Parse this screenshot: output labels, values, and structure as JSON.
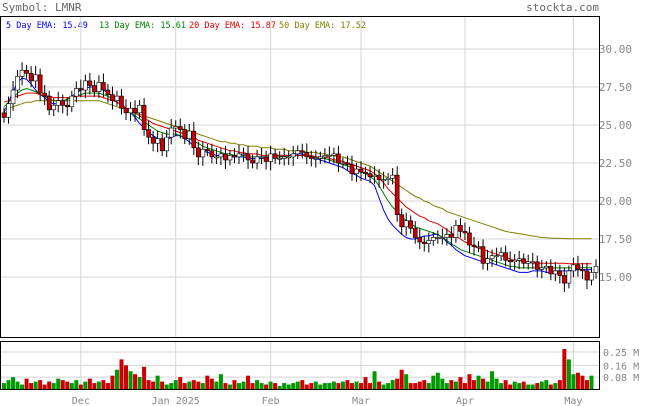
{
  "header": {
    "symbol_label": "Symbol: LMNR",
    "site": "stockta.com"
  },
  "ema_legend": [
    {
      "label": "5 Day EMA:",
      "value": "15.49",
      "color": "#0000ff"
    },
    {
      "label": "13 Day EMA:",
      "value": "15.61",
      "color": "#008000"
    },
    {
      "label": "20 Day EMA:",
      "value": "15.87",
      "color": "#e00000"
    },
    {
      "label": "50 Day EMA:",
      "value": "17.52",
      "color": "#808000"
    }
  ],
  "chart_data": {
    "type": "candlestick",
    "price_axis": {
      "ticks": [
        15.0,
        17.5,
        20.0,
        22.5,
        25.0,
        27.5,
        30.0
      ],
      "tick_labels": [
        "15.00",
        "17.50",
        "20.00",
        "22.50",
        "25.00",
        "27.50",
        "30.00"
      ],
      "ylim": [
        12.0,
        31.0
      ]
    },
    "volume_axis": {
      "ticks": [
        0.08,
        0.16,
        0.25
      ],
      "tick_labels": [
        "0.08 M",
        "0.16 M",
        "0.25 M"
      ],
      "ylim": [
        0,
        0.27
      ]
    },
    "x_labels": [
      {
        "label": "Dec",
        "index": 17
      },
      {
        "label": "Jan 2025",
        "index": 38
      },
      {
        "label": "Feb",
        "index": 59
      },
      {
        "label": "Mar",
        "index": 79
      },
      {
        "label": "Apr",
        "index": 102
      },
      {
        "label": "May",
        "index": 126
      }
    ],
    "closes": [
      25.5,
      26.4,
      27.3,
      28.2,
      28.6,
      28.4,
      27.9,
      28.3,
      27.1,
      26.9,
      26.0,
      26.3,
      26.6,
      26.3,
      26.2,
      26.9,
      27.4,
      27.3,
      27.9,
      27.6,
      27.2,
      27.8,
      27.3,
      27.0,
      26.6,
      26.9,
      26.1,
      25.8,
      26.1,
      25.8,
      26.3,
      24.7,
      24.2,
      23.8,
      24.1,
      23.3,
      24.2,
      24.8,
      24.9,
      24.7,
      24.1,
      24.6,
      23.5,
      22.9,
      23.4,
      23.3,
      22.9,
      22.9,
      23.1,
      22.7,
      23.0,
      22.9,
      23.1,
      23.1,
      22.7,
      22.5,
      22.9,
      22.9,
      22.6,
      23.1,
      22.8,
      22.8,
      22.9,
      22.9,
      23.1,
      23.3,
      23.2,
      22.9,
      22.8,
      22.8,
      22.9,
      23.0,
      23.0,
      23.1,
      22.5,
      22.5,
      22.4,
      21.8,
      22.1,
      21.9,
      21.8,
      21.6,
      21.7,
      21.4,
      21.4,
      21.5,
      21.7,
      19.1,
      18.3,
      18.7,
      18.2,
      17.6,
      17.3,
      17.2,
      17.4,
      17.6,
      17.6,
      17.6,
      17.8,
      17.6,
      18.4,
      18.0,
      17.9,
      17.1,
      17.0,
      17.0,
      15.9,
      16.2,
      16.4,
      16.4,
      16.6,
      16.1,
      16.0,
      16.1,
      16.2,
      15.9,
      16.0,
      16.0,
      15.5,
      15.6,
      15.7,
      15.2,
      15.4,
      15.1,
      14.6,
      15.4,
      15.8,
      15.5,
      15.4,
      14.8,
      15.3,
      15.7
    ],
    "ema": [
      {
        "name": "5 Day EMA",
        "values": [
          25.8,
          26.5,
          27.2,
          27.8,
          28.1,
          28.0,
          27.7,
          27.3,
          27.0,
          26.8,
          26.5,
          26.4,
          26.4,
          26.5,
          26.7,
          26.9,
          27.1,
          27.3,
          27.4,
          27.5,
          27.5,
          27.5,
          27.3,
          27.1,
          26.9,
          26.7,
          26.4,
          26.1,
          25.8,
          25.5,
          25.1,
          24.8,
          24.5,
          24.3,
          24.1,
          24.0,
          24.0,
          24.2,
          24.3,
          24.3,
          24.1,
          23.9,
          23.6,
          23.4,
          23.3,
          23.2,
          23.1,
          23.0,
          23.0,
          23.0,
          22.9,
          22.9,
          22.9,
          22.9,
          22.8,
          22.8,
          22.8,
          22.8,
          22.8,
          22.9,
          22.9,
          22.9,
          23.0,
          23.0,
          23.1,
          23.1,
          23.1,
          23.0,
          22.9,
          22.8,
          22.7,
          22.6,
          22.5,
          22.4,
          22.3,
          22.2,
          22.0,
          21.8,
          21.7,
          21.5,
          21.4,
          21.3,
          21.0,
          20.2,
          19.4,
          18.8,
          18.4,
          18.1,
          17.8,
          17.6,
          17.5,
          17.5,
          17.6,
          17.7,
          17.7,
          17.8,
          17.8,
          17.6,
          17.3,
          17.1,
          16.8,
          16.6,
          16.4,
          16.3,
          16.2,
          16.1,
          16.0,
          16.0,
          15.9,
          15.8,
          15.7,
          15.6,
          15.5,
          15.4,
          15.3,
          15.3,
          15.3,
          15.4,
          15.4,
          15.4,
          15.3,
          15.3,
          15.4,
          15.4,
          15.4,
          15.4,
          15.45,
          15.49,
          15.49,
          15.49,
          15.49
        ]
      },
      {
        "name": "13 Day EMA",
        "values": [
          26.2,
          26.5,
          26.8,
          27.1,
          27.3,
          27.4,
          27.3,
          27.2,
          27.0,
          26.9,
          26.7,
          26.6,
          26.6,
          26.6,
          26.7,
          26.8,
          26.9,
          27.0,
          27.1,
          27.1,
          27.1,
          27.1,
          27.0,
          26.9,
          26.7,
          26.5,
          26.3,
          26.1,
          25.9,
          25.6,
          25.4,
          25.2,
          25.0,
          24.8,
          24.6,
          24.5,
          24.4,
          24.4,
          24.4,
          24.3,
          24.2,
          24.1,
          23.9,
          23.8,
          23.6,
          23.5,
          23.4,
          23.3,
          23.2,
          23.1,
          23.1,
          23.0,
          23.0,
          23.0,
          22.9,
          22.9,
          22.9,
          22.9,
          22.9,
          22.9,
          22.9,
          22.9,
          22.9,
          23.0,
          23.0,
          23.0,
          23.0,
          23.0,
          22.9,
          22.9,
          22.8,
          22.8,
          22.7,
          22.6,
          22.5,
          22.4,
          22.3,
          22.2,
          22.0,
          21.9,
          21.8,
          21.6,
          21.4,
          21.0,
          20.5,
          20.0,
          19.6,
          19.3,
          19.0,
          18.7,
          18.5,
          18.3,
          18.2,
          18.1,
          18.0,
          17.9,
          17.8,
          17.6,
          17.4,
          17.2,
          17.0,
          16.8,
          16.7,
          16.6,
          16.5,
          16.4,
          16.3,
          16.2,
          16.1,
          16.0,
          15.9,
          15.8,
          15.7,
          15.7,
          15.6,
          15.6,
          15.6,
          15.6,
          15.6,
          15.6,
          15.6,
          15.6,
          15.6,
          15.6,
          15.6,
          15.6,
          15.61,
          15.61,
          15.61,
          15.61,
          15.61
        ]
      },
      {
        "name": "20 Day EMA",
        "values": [
          26.5,
          26.6,
          26.8,
          26.9,
          27.0,
          27.1,
          27.1,
          27.1,
          27.0,
          26.9,
          26.9,
          26.8,
          26.8,
          26.8,
          26.8,
          26.8,
          26.9,
          26.9,
          26.9,
          26.9,
          26.9,
          26.9,
          26.8,
          26.7,
          26.6,
          26.5,
          26.3,
          26.1,
          25.9,
          25.8,
          25.6,
          25.4,
          25.3,
          25.1,
          25.0,
          24.9,
          24.8,
          24.7,
          24.6,
          24.5,
          24.4,
          24.3,
          24.2,
          24.0,
          23.9,
          23.8,
          23.7,
          23.6,
          23.5,
          23.4,
          23.3,
          23.3,
          23.2,
          23.2,
          23.1,
          23.1,
          23.1,
          23.0,
          23.0,
          23.0,
          23.0,
          23.0,
          23.0,
          23.0,
          23.0,
          23.0,
          23.0,
          23.0,
          23.0,
          22.9,
          22.9,
          22.9,
          22.8,
          22.7,
          22.7,
          22.6,
          22.5,
          22.4,
          22.3,
          22.2,
          22.1,
          22.0,
          21.8,
          21.5,
          21.2,
          20.8,
          20.5,
          20.2,
          19.9,
          19.6,
          19.4,
          19.2,
          19.0,
          18.9,
          18.7,
          18.6,
          18.5,
          18.3,
          18.1,
          17.9,
          17.7,
          17.5,
          17.3,
          17.2,
          17.0,
          16.9,
          16.8,
          16.7,
          16.6,
          16.5,
          16.4,
          16.3,
          16.2,
          16.1,
          16.1,
          16.0,
          16.0,
          15.9,
          15.9,
          15.9,
          15.9,
          15.9,
          15.9,
          15.9,
          15.9,
          15.87,
          15.87,
          15.87,
          15.87,
          15.87,
          15.87
        ]
      },
      {
        "name": "50 Day EMA",
        "values": [
          26.0,
          26.1,
          26.2,
          26.3,
          26.4,
          26.5,
          26.5,
          26.6,
          26.6,
          26.6,
          26.6,
          26.6,
          26.6,
          26.6,
          26.6,
          26.6,
          26.6,
          26.6,
          26.6,
          26.6,
          26.6,
          26.6,
          26.5,
          26.4,
          26.3,
          26.2,
          26.1,
          26.0,
          25.9,
          25.8,
          25.7,
          25.6,
          25.5,
          25.4,
          25.3,
          25.2,
          25.1,
          25.0,
          24.9,
          24.8,
          24.7,
          24.6,
          24.5,
          24.4,
          24.3,
          24.2,
          24.1,
          24.0,
          23.9,
          23.9,
          23.8,
          23.8,
          23.7,
          23.7,
          23.6,
          23.6,
          23.6,
          23.5,
          23.5,
          23.5,
          23.4,
          23.4,
          23.4,
          23.3,
          23.3,
          23.3,
          23.3,
          23.2,
          23.2,
          23.2,
          23.1,
          23.1,
          23.0,
          23.0,
          22.9,
          22.9,
          22.8,
          22.7,
          22.6,
          22.5,
          22.4,
          22.3,
          22.1,
          21.9,
          21.7,
          21.5,
          21.3,
          21.1,
          20.9,
          20.7,
          20.5,
          20.3,
          20.2,
          20.0,
          19.9,
          19.7,
          19.6,
          19.5,
          19.3,
          19.2,
          19.1,
          19.0,
          18.9,
          18.8,
          18.7,
          18.6,
          18.5,
          18.4,
          18.3,
          18.2,
          18.1,
          18.0,
          17.95,
          17.9,
          17.85,
          17.8,
          17.75,
          17.7,
          17.65,
          17.6,
          17.58,
          17.56,
          17.55,
          17.54,
          17.53,
          17.52,
          17.52,
          17.52,
          17.52,
          17.52,
          17.52
        ]
      }
    ],
    "volume": [
      0.04,
      0.06,
      0.08,
      0.05,
      0.03,
      0.07,
      0.04,
      0.05,
      0.06,
      0.03,
      0.05,
      0.04,
      0.07,
      0.06,
      0.05,
      0.04,
      0.06,
      0.03,
      0.05,
      0.07,
      0.04,
      0.05,
      0.06,
      0.04,
      0.09,
      0.13,
      0.2,
      0.16,
      0.12,
      0.1,
      0.08,
      0.15,
      0.06,
      0.05,
      0.09,
      0.05,
      0.03,
      0.04,
      0.06,
      0.08,
      0.04,
      0.05,
      0.06,
      0.05,
      0.04,
      0.09,
      0.07,
      0.05,
      0.1,
      0.04,
      0.03,
      0.06,
      0.04,
      0.05,
      0.09,
      0.04,
      0.06,
      0.04,
      0.03,
      0.05,
      0.04,
      0.02,
      0.04,
      0.03,
      0.04,
      0.05,
      0.06,
      0.03,
      0.04,
      0.05,
      0.03,
      0.04,
      0.04,
      0.05,
      0.04,
      0.05,
      0.06,
      0.04,
      0.05,
      0.04,
      0.08,
      0.04,
      0.12,
      0.05,
      0.03,
      0.04,
      0.06,
      0.07,
      0.13,
      0.1,
      0.04,
      0.04,
      0.05,
      0.06,
      0.04,
      0.09,
      0.11,
      0.07,
      0.04,
      0.06,
      0.05,
      0.08,
      0.04,
      0.1,
      0.06,
      0.09,
      0.07,
      0.05,
      0.12,
      0.07,
      0.04,
      0.06,
      0.03,
      0.05,
      0.04,
      0.05,
      0.03,
      0.03,
      0.04,
      0.05,
      0.06,
      0.03,
      0.04,
      0.06,
      0.27,
      0.2,
      0.1,
      0.11,
      0.09,
      0.06,
      0.09
    ]
  }
}
